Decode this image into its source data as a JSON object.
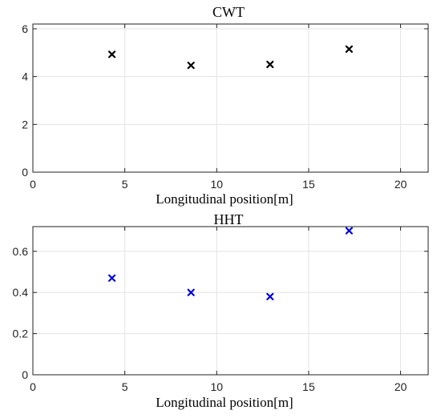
{
  "chart_data": [
    {
      "type": "scatter",
      "title": "CWT",
      "xlabel": "Longitudinal position[m]",
      "ylabel": "",
      "xlim": [
        0,
        21.5
      ],
      "ylim": [
        0,
        6.2
      ],
      "xticks": [
        0,
        5,
        10,
        15,
        20
      ],
      "yticks": [
        0,
        2,
        4,
        6
      ],
      "grid": true,
      "marker": "x",
      "color": "#000000",
      "x": [
        4.3,
        8.6,
        12.9,
        17.2
      ],
      "y": [
        4.93,
        4.47,
        4.51,
        5.15
      ]
    },
    {
      "type": "scatter",
      "title": "HHT",
      "xlabel": "Longitudinal position[m]",
      "ylabel": "",
      "xlim": [
        0,
        21.5
      ],
      "ylim": [
        0,
        0.72
      ],
      "xticks": [
        0,
        5,
        10,
        15,
        20
      ],
      "yticks": [
        0,
        0.2,
        0.4,
        0.6
      ],
      "grid": true,
      "marker": "x",
      "color": "#0000e0",
      "x": [
        4.3,
        8.6,
        12.9,
        17.2
      ],
      "y": [
        0.47,
        0.4,
        0.38,
        0.7
      ]
    }
  ]
}
